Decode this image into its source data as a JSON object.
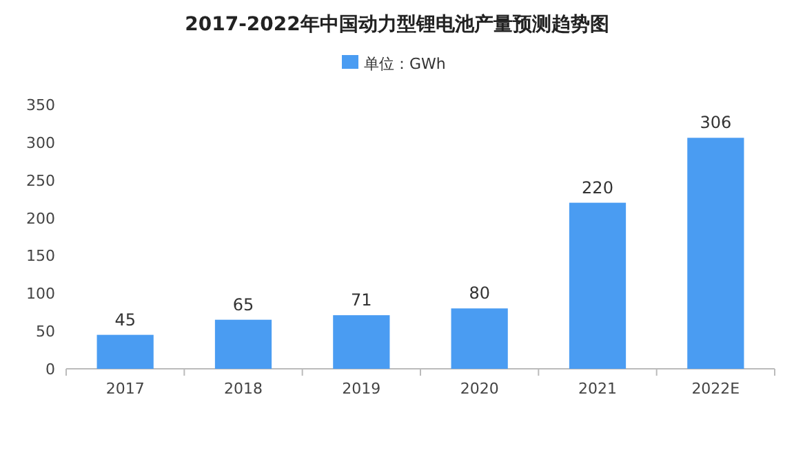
{
  "chart_data": {
    "type": "bar",
    "title": "2017-2022年中国动力型锂电池产量预测趋势图",
    "categories": [
      "2017",
      "2018",
      "2019",
      "2020",
      "2021",
      "2022E"
    ],
    "series": [
      {
        "name": "单位：GWh",
        "color": "#4a9cf2",
        "values": [
          45,
          65,
          71,
          80,
          220,
          306
        ]
      }
    ],
    "ylim": [
      0,
      350
    ],
    "yticks": [
      0,
      50,
      100,
      150,
      200,
      250,
      300,
      350
    ],
    "data_labels": true,
    "legend": "top"
  }
}
